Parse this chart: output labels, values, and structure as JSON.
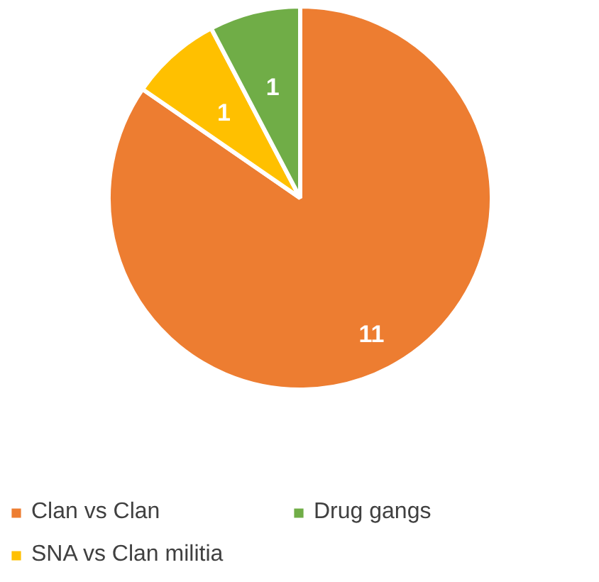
{
  "chart_data": {
    "type": "pie",
    "categories": [
      "Clan vs Clan",
      "SNA vs Clan militia",
      "Drug gangs"
    ],
    "values": [
      11,
      1,
      1
    ],
    "colors": [
      "#ed7d31",
      "#ffc000",
      "#70ad47"
    ],
    "data_labels": true,
    "legend": "bottom"
  }
}
